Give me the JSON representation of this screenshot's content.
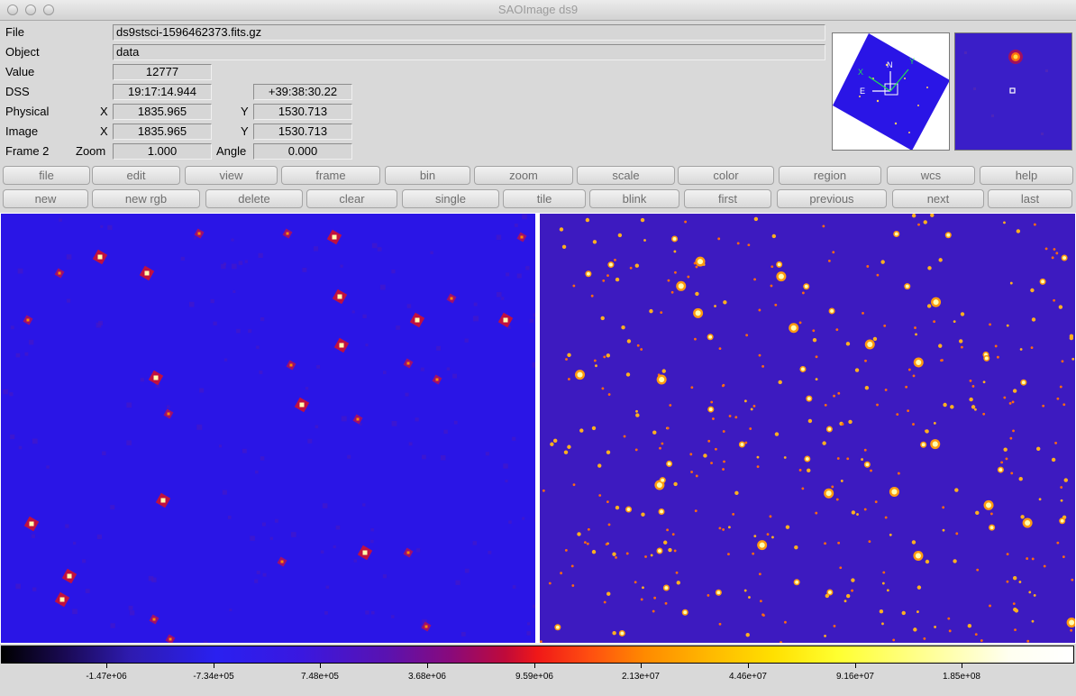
{
  "window": {
    "title": "SAOImage ds9"
  },
  "info": {
    "file_label": "File",
    "file_value": "ds9stsci-1596462373.fits.gz",
    "object_label": "Object",
    "object_value": "data",
    "value_label": "Value",
    "value_value": "12777",
    "dss_label": "DSS",
    "dss_ra": "19:17:14.944",
    "dss_dec": "+39:38:30.22",
    "physical_label": "Physical",
    "physical_x_label": "X",
    "physical_x": "1835.965",
    "physical_y_label": "Y",
    "physical_y": "1530.713",
    "image_label": "Image",
    "image_x_label": "X",
    "image_x": "1835.965",
    "image_y_label": "Y",
    "image_y": "1530.713",
    "frame_label": "Frame 2",
    "zoom_label": "Zoom",
    "zoom_value": "1.000",
    "angle_label": "Angle",
    "angle_value": "0.000"
  },
  "panner": {
    "compass_n": "N",
    "compass_e": "E",
    "axis_x": "X",
    "axis_y": "Y"
  },
  "menu_buttons": [
    "file",
    "edit",
    "view",
    "frame",
    "bin",
    "zoom",
    "scale",
    "color",
    "region",
    "wcs",
    "help"
  ],
  "frame_buttons": [
    "new",
    "new rgb",
    "delete",
    "clear",
    "single",
    "tile",
    "blink",
    "first",
    "previous",
    "next",
    "last"
  ],
  "colorbar": {
    "tick_labels": [
      "-1.47e+06",
      "-7.34e+05",
      "7.48e+05",
      "3.68e+06",
      "9.59e+06",
      "2.13e+07",
      "4.46e+07",
      "9.16e+07",
      "1.85e+08"
    ]
  },
  "colors": {
    "frame_left_bg": "#2a15e6",
    "frame_right_bg": "#3d1ac0",
    "star_core": "#ffffb0",
    "star_halo": "#ff8a00"
  }
}
